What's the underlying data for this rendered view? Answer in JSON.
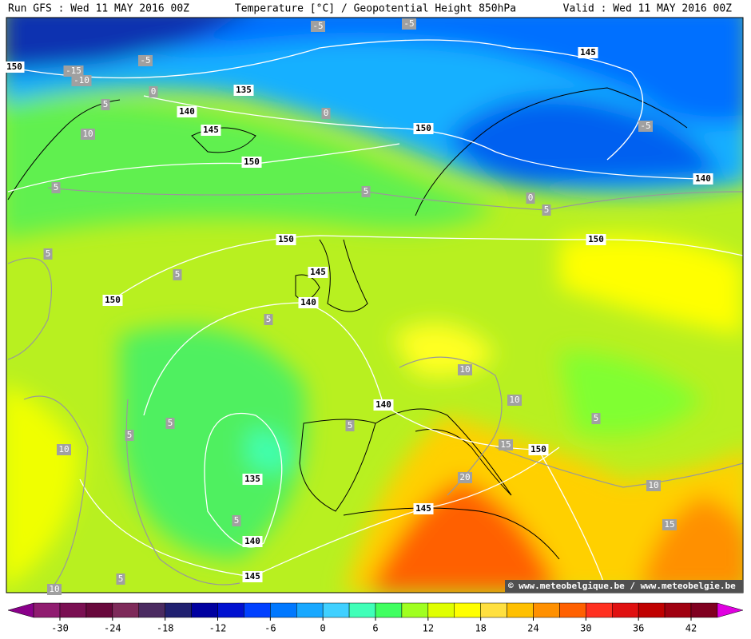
{
  "header": {
    "left": "Run GFS : Wed 11 MAY 2016 00Z",
    "title": "Temperature [°C] / Geopotential Height 850hPa",
    "right": "Valid : Wed 11 MAY 2016 00Z"
  },
  "contours": {
    "height_labels": [
      "150",
      "145",
      "135",
      "140",
      "145",
      "150",
      "150",
      "140",
      "150",
      "150",
      "145",
      "140",
      "150",
      "140",
      "150",
      "135",
      "145",
      "140",
      "145"
    ],
    "temperature_labels": [
      "-5",
      "-5",
      "-15",
      "-10",
      "-5",
      "0",
      "5",
      "0",
      "10",
      "-5",
      "5",
      "5",
      "0",
      "5",
      "5",
      "5",
      "5",
      "10",
      "10",
      "5",
      "5",
      "5",
      "5",
      "15",
      "10",
      "20",
      "10",
      "15",
      "5",
      "5",
      "10"
    ]
  },
  "watermark": "© www.meteobelgique.be / www.meteobelgie.be",
  "colorbar": {
    "ticks": [
      -30,
      -24,
      -18,
      -12,
      -6,
      0,
      6,
      12,
      18,
      24,
      30,
      36,
      42
    ],
    "colors": [
      "#8a008a",
      "#901c70",
      "#7a0f52",
      "#68083c",
      "#7e2a5a",
      "#4a2a60",
      "#202070",
      "#0000a0",
      "#0010d0",
      "#0040ff",
      "#0078ff",
      "#18a8ff",
      "#40d0ff",
      "#40ffb8",
      "#40ff60",
      "#a0ff20",
      "#e0ff00",
      "#ffff00",
      "#ffe040",
      "#ffc000",
      "#ff9000",
      "#ff6000",
      "#ff3020",
      "#e01010",
      "#c00000",
      "#a00010",
      "#800020",
      "#e000e0"
    ]
  }
}
